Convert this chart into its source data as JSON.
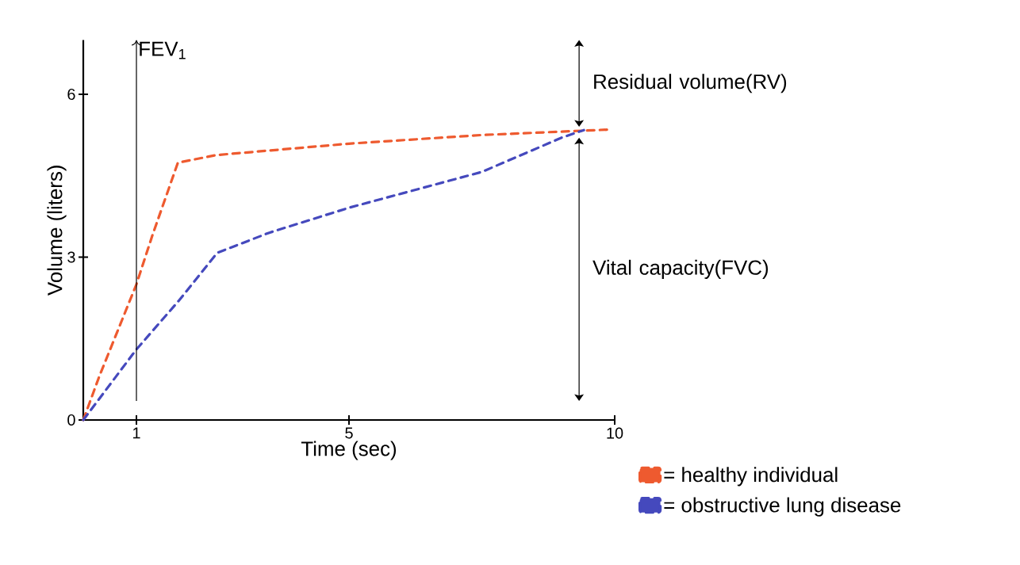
{
  "chart_data": {
    "type": "line",
    "xlabel": "Time (sec)",
    "ylabel": "Volume (liters)",
    "xlim": [
      0,
      10
    ],
    "ylim": [
      0,
      7
    ],
    "xticks": [
      1,
      5,
      10
    ],
    "yticks": [
      0,
      3,
      6
    ],
    "line_style": "dashed",
    "legend": "bottom right",
    "series": [
      {
        "name": "= healthy individual",
        "color": "#ee5a2f",
        "x": [
          0,
          0.3,
          1,
          1.3,
          1.78,
          2.5,
          5,
          7.5,
          9.9
        ],
        "values": [
          0,
          0.8,
          2.5,
          3.4,
          4.74,
          4.88,
          5.09,
          5.25,
          5.35
        ]
      },
      {
        "name": "= obstructive lung disease",
        "color": "#4549bd",
        "x": [
          0,
          1,
          1.8,
          2.52,
          3.5,
          5,
          7.5,
          9,
          9.42
        ],
        "values": [
          0,
          1.3,
          2.2,
          3.08,
          3.45,
          3.91,
          4.57,
          5.2,
          5.34
        ]
      }
    ],
    "ref_lines": [
      {
        "axis": "x",
        "value": 1,
        "label": "FEV$_{1}$",
        "color": "#000000"
      }
    ],
    "annotations": [
      "Residual volume(RV)",
      "Vital capacity(FVC)"
    ]
  }
}
